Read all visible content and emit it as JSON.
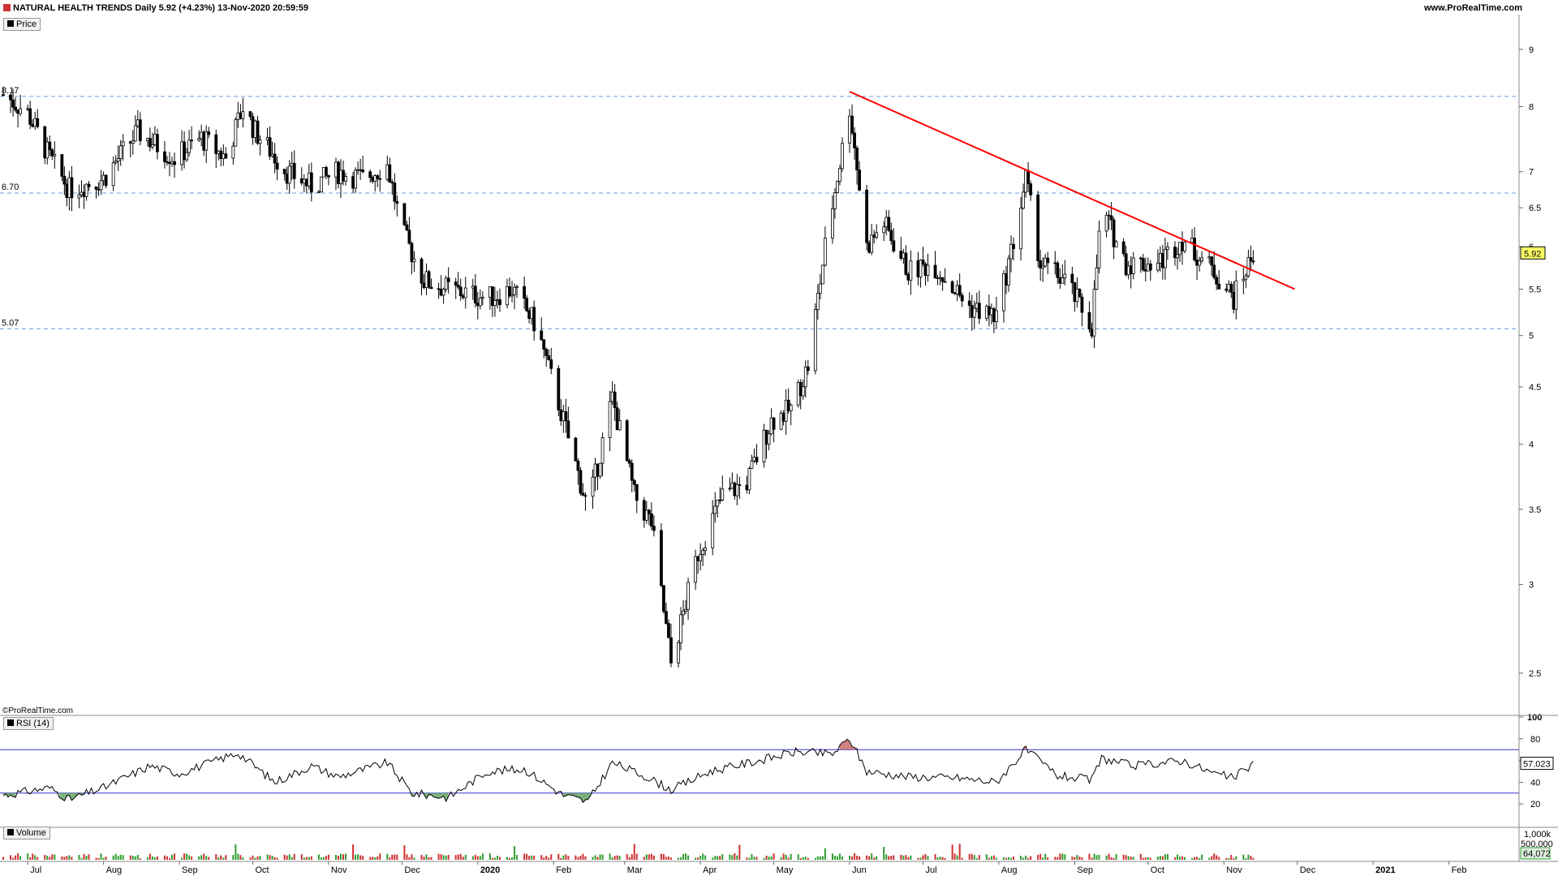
{
  "header": {
    "title": "NATURAL HEALTH TRENDS Daily 5.92 (+4.23%) 13-Nov-2020 20:59:59",
    "site": "www.ProRealTime.com",
    "watermark": "©ProRealTime.com"
  },
  "panels": {
    "price_tag": "Price",
    "rsi_tag": "RSI (14)",
    "volume_tag": "Volume"
  },
  "colors": {
    "up_candle": "#ffffff",
    "down_candle": "#000000",
    "trendline": "#ff0000",
    "hline": "#6f9fd8",
    "rsi_band": "#3333cc",
    "rsi_oversold_fill": "#5a9e5a",
    "rsi_overbought_fill": "#c46060",
    "vol_up": "#2e9e2e",
    "vol_down": "#d03030"
  },
  "chart_data": [
    {
      "type": "candlestick",
      "panel": "price",
      "scale": "log",
      "ylim": [
        2.3,
        9.6
      ],
      "y_ticks": [
        9,
        8,
        7,
        6.5,
        6,
        5.5,
        5,
        4.5,
        4,
        3.5,
        3,
        2.5
      ],
      "last_price": "5.92",
      "horizontal_levels": [
        {
          "value": 8.17,
          "label": "8.17"
        },
        {
          "value": 6.7,
          "label": "6.70"
        },
        {
          "value": 5.07,
          "label": "5.07"
        }
      ],
      "trendline": {
        "from": [
          "2020-06-01",
          8.25
        ],
        "to": [
          "2020-11-30",
          5.5
        ]
      },
      "x_range": [
        "2019-06-21",
        "2021-03-01"
      ],
      "month_labels": [
        {
          "date": "2019-07-01",
          "label": "Jul"
        },
        {
          "date": "2019-08-01",
          "label": "Aug"
        },
        {
          "date": "2019-09-01",
          "label": "Sep"
        },
        {
          "date": "2019-10-01",
          "label": "Oct"
        },
        {
          "date": "2019-11-01",
          "label": "Nov"
        },
        {
          "date": "2019-12-01",
          "label": "Dec"
        },
        {
          "date": "2020-01-01",
          "label": "2020",
          "bold": true
        },
        {
          "date": "2020-02-01",
          "label": "Feb"
        },
        {
          "date": "2020-03-01",
          "label": "Mar"
        },
        {
          "date": "2020-04-01",
          "label": "Apr"
        },
        {
          "date": "2020-05-01",
          "label": "May"
        },
        {
          "date": "2020-06-01",
          "label": "Jun"
        },
        {
          "date": "2020-07-01",
          "label": "Jul"
        },
        {
          "date": "2020-08-01",
          "label": "Aug"
        },
        {
          "date": "2020-09-01",
          "label": "Sep"
        },
        {
          "date": "2020-10-01",
          "label": "Oct"
        },
        {
          "date": "2020-11-01",
          "label": "Nov"
        },
        {
          "date": "2020-12-01",
          "label": "Dec"
        },
        {
          "date": "2021-01-01",
          "label": "2021",
          "bold": true
        },
        {
          "date": "2021-02-01",
          "label": "Feb"
        }
      ],
      "closes": [
        {
          "date": "2019-06-21",
          "close": 8.2
        },
        {
          "date": "2019-07-01",
          "close": 7.9
        },
        {
          "date": "2019-07-10",
          "close": 7.2
        },
        {
          "date": "2019-07-18",
          "close": 6.75
        },
        {
          "date": "2019-08-01",
          "close": 6.9
        },
        {
          "date": "2019-08-15",
          "close": 7.6
        },
        {
          "date": "2019-08-30",
          "close": 7.2
        },
        {
          "date": "2019-09-10",
          "close": 7.5
        },
        {
          "date": "2019-09-20",
          "close": 7.2
        },
        {
          "date": "2019-09-27",
          "close": 8.0
        },
        {
          "date": "2019-10-02",
          "close": 7.6
        },
        {
          "date": "2019-10-15",
          "close": 7.0
        },
        {
          "date": "2019-10-25",
          "close": 6.8
        },
        {
          "date": "2019-11-05",
          "close": 7.0
        },
        {
          "date": "2019-11-15",
          "close": 6.9
        },
        {
          "date": "2019-11-25",
          "close": 7.1
        },
        {
          "date": "2019-12-01",
          "close": 6.2
        },
        {
          "date": "2019-12-10",
          "close": 5.6
        },
        {
          "date": "2019-12-20",
          "close": 5.5
        },
        {
          "date": "2020-01-05",
          "close": 5.4
        },
        {
          "date": "2020-01-15",
          "close": 5.5
        },
        {
          "date": "2020-01-25",
          "close": 5.1
        },
        {
          "date": "2020-02-05",
          "close": 4.2
        },
        {
          "date": "2020-02-15",
          "close": 3.5
        },
        {
          "date": "2020-02-25",
          "close": 4.4
        },
        {
          "date": "2020-03-05",
          "close": 3.6
        },
        {
          "date": "2020-03-12",
          "close": 3.4
        },
        {
          "date": "2020-03-20",
          "close": 2.55
        },
        {
          "date": "2020-03-31",
          "close": 3.2
        },
        {
          "date": "2020-04-10",
          "close": 3.6
        },
        {
          "date": "2020-04-20",
          "close": 3.7
        },
        {
          "date": "2020-04-30",
          "close": 4.2
        },
        {
          "date": "2020-05-08",
          "close": 4.3
        },
        {
          "date": "2020-05-15",
          "close": 4.7
        },
        {
          "date": "2020-05-22",
          "close": 6.0
        },
        {
          "date": "2020-06-01",
          "close": 8.0
        },
        {
          "date": "2020-06-08",
          "close": 6.0
        },
        {
          "date": "2020-06-15",
          "close": 6.3
        },
        {
          "date": "2020-06-25",
          "close": 5.7
        },
        {
          "date": "2020-07-05",
          "close": 5.8
        },
        {
          "date": "2020-07-20",
          "close": 5.3
        },
        {
          "date": "2020-07-31",
          "close": 5.2
        },
        {
          "date": "2020-08-08",
          "close": 6.2
        },
        {
          "date": "2020-08-12",
          "close": 6.9
        },
        {
          "date": "2020-08-18",
          "close": 5.8
        },
        {
          "date": "2020-08-28",
          "close": 5.6
        },
        {
          "date": "2020-09-08",
          "close": 5.1
        },
        {
          "date": "2020-09-12",
          "close": 6.5
        },
        {
          "date": "2020-09-22",
          "close": 5.8
        },
        {
          "date": "2020-10-05",
          "close": 5.8
        },
        {
          "date": "2020-10-15",
          "close": 6.1
        },
        {
          "date": "2020-10-28",
          "close": 5.7
        },
        {
          "date": "2020-11-05",
          "close": 5.4
        },
        {
          "date": "2020-11-13",
          "close": 5.92
        }
      ]
    },
    {
      "type": "line",
      "panel": "rsi",
      "ylim": [
        0,
        100
      ],
      "y_ticks": [
        100,
        80,
        60,
        40,
        20
      ],
      "bands": [
        70,
        30
      ],
      "last_value": "57.023",
      "series": [
        {
          "date": "2019-06-21",
          "value": 28
        },
        {
          "date": "2019-07-10",
          "value": 35
        },
        {
          "date": "2019-07-18",
          "value": 24
        },
        {
          "date": "2019-08-01",
          "value": 35
        },
        {
          "date": "2019-08-20",
          "value": 55
        },
        {
          "date": "2019-09-01",
          "value": 48
        },
        {
          "date": "2019-09-25",
          "value": 67
        },
        {
          "date": "2019-10-10",
          "value": 40
        },
        {
          "date": "2019-10-25",
          "value": 55
        },
        {
          "date": "2019-11-05",
          "value": 45
        },
        {
          "date": "2019-11-25",
          "value": 58
        },
        {
          "date": "2019-12-05",
          "value": 30
        },
        {
          "date": "2019-12-20",
          "value": 26
        },
        {
          "date": "2020-01-05",
          "value": 50
        },
        {
          "date": "2020-01-20",
          "value": 52
        },
        {
          "date": "2020-02-05",
          "value": 28
        },
        {
          "date": "2020-02-15",
          "value": 22
        },
        {
          "date": "2020-02-25",
          "value": 58
        },
        {
          "date": "2020-03-10",
          "value": 45
        },
        {
          "date": "2020-03-20",
          "value": 33
        },
        {
          "date": "2020-04-05",
          "value": 50
        },
        {
          "date": "2020-04-25",
          "value": 60
        },
        {
          "date": "2020-05-10",
          "value": 68
        },
        {
          "date": "2020-05-25",
          "value": 66
        },
        {
          "date": "2020-06-01",
          "value": 80
        },
        {
          "date": "2020-06-08",
          "value": 50
        },
        {
          "date": "2020-06-25",
          "value": 45
        },
        {
          "date": "2020-07-15",
          "value": 44
        },
        {
          "date": "2020-07-31",
          "value": 40
        },
        {
          "date": "2020-08-12",
          "value": 70
        },
        {
          "date": "2020-08-25",
          "value": 46
        },
        {
          "date": "2020-09-08",
          "value": 42
        },
        {
          "date": "2020-09-12",
          "value": 62
        },
        {
          "date": "2020-09-25",
          "value": 55
        },
        {
          "date": "2020-10-15",
          "value": 60
        },
        {
          "date": "2020-10-28",
          "value": 48
        },
        {
          "date": "2020-11-05",
          "value": 44
        },
        {
          "date": "2020-11-13",
          "value": 57
        }
      ]
    },
    {
      "type": "bar",
      "panel": "volume",
      "y_ticks_labels": [
        "1,000k",
        "500,000"
      ],
      "last_value": "64,072"
    }
  ]
}
